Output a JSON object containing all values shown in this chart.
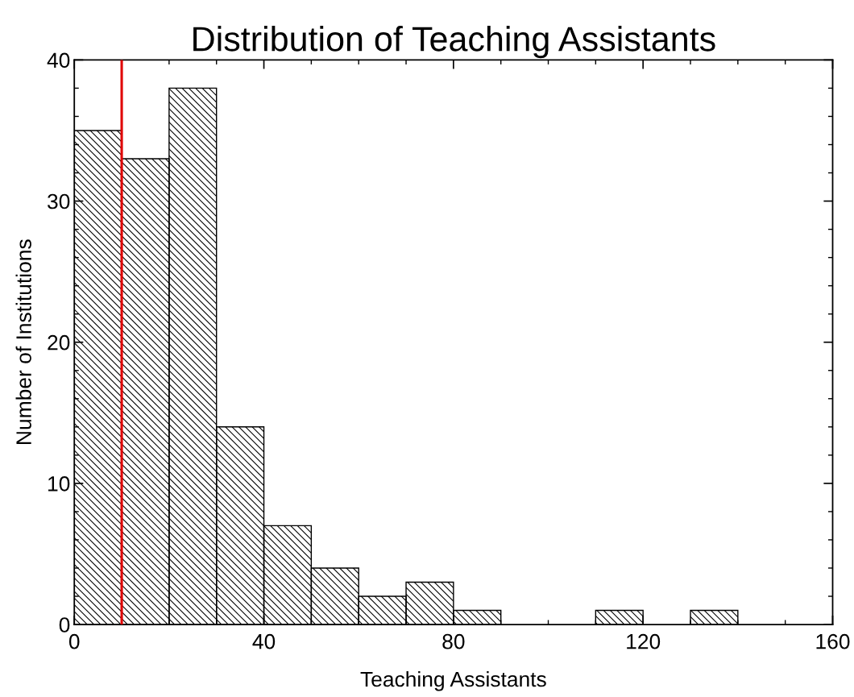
{
  "chart_data": {
    "type": "histogram",
    "title": "Distribution of Teaching Assistants",
    "xlabel": "Teaching Assistants",
    "ylabel": "Number of Institutions",
    "bins": [
      0,
      10,
      20,
      30,
      40,
      50,
      60,
      70,
      80,
      90,
      100,
      110,
      120,
      130,
      140
    ],
    "values": [
      35,
      33,
      38,
      14,
      7,
      4,
      2,
      3,
      1,
      0,
      0,
      1,
      0,
      1
    ],
    "color": "#000000",
    "xlim": [
      0,
      160
    ],
    "xticks": [
      0,
      40,
      80,
      120,
      160
    ],
    "ylim": [
      0,
      40
    ],
    "yticks": [
      0,
      10,
      20,
      30,
      40
    ],
    "ref_lines": [
      {
        "axis": "x",
        "value": 10,
        "color": "#e00000",
        "line_style": "solid"
      }
    ],
    "grid": false,
    "legend": false
  }
}
